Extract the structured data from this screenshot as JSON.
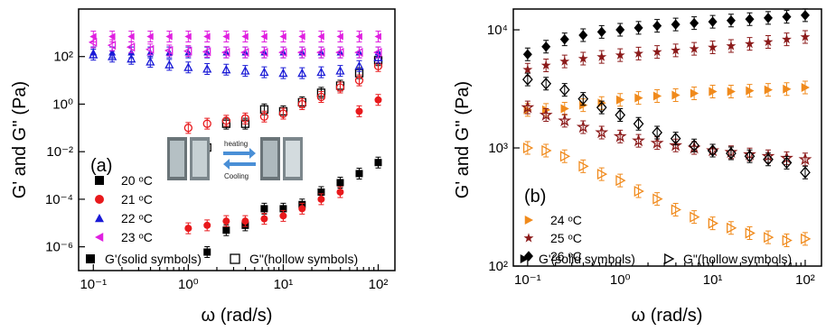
{
  "chart_data": [
    {
      "type": "scatter",
      "panel_label": "(a)",
      "xlabel": "ω  (rad/s)",
      "ylabel": "G' and G'' (Pa)",
      "x_scale": "log",
      "y_scale": "log",
      "xlim": [
        0.07,
        150
      ],
      "ylim": [
        1e-07,
        10000
      ],
      "x_ticks": [
        0.1,
        1,
        10,
        100
      ],
      "x_ticklabels": [
        "10⁻¹",
        "10⁰",
        "10¹",
        "10²"
      ],
      "y_ticks": [
        1e-06,
        0.0001,
        0.01,
        1,
        100
      ],
      "y_ticklabels": [
        "10⁻⁶",
        "10⁻⁴",
        "10⁻²",
        "10⁰",
        "10²"
      ],
      "legend_position": "bottom-left",
      "legend_note_solid": "G'(solid symbols)",
      "legend_note_hollow": "G\"(hollow symbols)",
      "inset": {
        "label_top": "heating",
        "label_bottom": "Cooling"
      },
      "series": [
        {
          "name": "20 ᵒC",
          "color": "#000000",
          "marker": "square",
          "x_Gp": [
            1.58,
            2.51,
            3.98,
            6.31,
            10,
            15.8,
            25.1,
            39.8,
            63.1,
            100
          ],
          "Gp": [
            6e-07,
            5e-06,
            8e-06,
            4e-05,
            4e-05,
            6e-05,
            0.0002,
            0.0005,
            0.0012,
            0.0035
          ],
          "x_Gpp": [
            1.58,
            2.51,
            3.98,
            6.31,
            10,
            15.8,
            25.1,
            39.8,
            63.1,
            100
          ],
          "Gpp": [
            0.015,
            0.15,
            0.15,
            0.6,
            0.5,
            1.2,
            3,
            6,
            20,
            70
          ]
        },
        {
          "name": "21 ᵒC",
          "color": "#e8191c",
          "marker": "circle",
          "x_Gp": [
            1.0,
            1.58,
            2.51,
            3.98,
            6.31,
            10,
            15.8,
            25.1,
            39.8,
            63.1,
            100
          ],
          "Gp": [
            6e-06,
            8e-06,
            1.2e-05,
            1.2e-05,
            1.5e-05,
            2e-05,
            4e-05,
            0.0001,
            0.0002,
            0.5,
            1.5
          ],
          "x_Gpp": [
            1.0,
            1.58,
            2.51,
            3.98,
            6.31,
            10,
            15.8,
            25.1,
            39.8,
            63.1,
            100
          ],
          "Gpp": [
            0.1,
            0.15,
            0.2,
            0.25,
            0.3,
            0.4,
            1,
            2,
            5,
            10,
            40
          ]
        },
        {
          "name": "22 ᵒC",
          "color": "#1a1ad6",
          "marker": "triangle-up",
          "x_Gp": [
            0.1,
            0.158,
            0.251,
            0.398,
            0.631,
            1.0,
            1.58,
            2.51,
            3.98,
            6.31,
            10,
            15.8,
            25.1,
            39.8,
            63.1,
            100
          ],
          "Gp": [
            150,
            150,
            150,
            150,
            150,
            150,
            150,
            150,
            150,
            150,
            150,
            150,
            150,
            150,
            150,
            150
          ],
          "x_Gpp": [
            0.1,
            0.158,
            0.251,
            0.398,
            0.631,
            1.0,
            1.58,
            2.51,
            3.98,
            6.31,
            10,
            15.8,
            25.1,
            39.8,
            63.1,
            100
          ],
          "Gpp": [
            120,
            100,
            80,
            60,
            45,
            35,
            30,
            28,
            25,
            22,
            20,
            20,
            22,
            25,
            40,
            90
          ]
        },
        {
          "name": "23 ᵒC",
          "color": "#e020e0",
          "marker": "triangle-left",
          "x_Gp": [
            0.1,
            0.158,
            0.251,
            0.398,
            0.631,
            1.0,
            1.58,
            2.51,
            3.98,
            6.31,
            10,
            15.8,
            25.1,
            39.8,
            63.1,
            100
          ],
          "Gp": [
            700,
            700,
            700,
            700,
            700,
            700,
            700,
            700,
            700,
            700,
            700,
            700,
            700,
            700,
            700,
            700
          ],
          "x_Gpp": [
            0.1,
            0.158,
            0.251,
            0.398,
            0.631,
            1.0,
            1.58,
            2.51,
            3.98,
            6.31,
            10,
            15.8,
            25.1,
            39.8,
            63.1,
            100
          ],
          "Gpp": [
            400,
            300,
            250,
            200,
            180,
            170,
            160,
            150,
            150,
            150,
            150,
            150,
            150,
            150,
            150,
            150
          ]
        }
      ]
    },
    {
      "type": "scatter",
      "panel_label": "(b)",
      "xlabel": "ω  (rad/s)",
      "ylabel": "G' and G'' (Pa)",
      "x_scale": "log",
      "y_scale": "log",
      "xlim": [
        0.07,
        150
      ],
      "ylim": [
        100,
        15000
      ],
      "x_ticks": [
        0.1,
        1,
        10,
        100
      ],
      "x_ticklabels": [
        "10⁻¹",
        "10⁰",
        "10¹",
        "10²"
      ],
      "y_ticks": [
        100,
        1000,
        10000
      ],
      "y_ticklabels": [
        "10²",
        "10³",
        "10⁴"
      ],
      "legend_position": "bottom-left",
      "legend_note_solid": "G'(solid symbols)",
      "legend_note_hollow": "G\"(hollow symbols)",
      "series": [
        {
          "name": "24 ᵒC",
          "color": "#f08a1c",
          "marker": "triangle-right",
          "x_Gp": [
            0.1,
            0.158,
            0.251,
            0.398,
            0.631,
            1.0,
            1.58,
            2.51,
            3.98,
            6.31,
            10,
            15.8,
            25.1,
            39.8,
            63.1,
            100
          ],
          "Gp": [
            2100,
            2100,
            2150,
            2300,
            2400,
            2550,
            2650,
            2750,
            2800,
            2900,
            3000,
            3000,
            3050,
            3100,
            3150,
            3250
          ],
          "x_Gpp": [
            0.1,
            0.158,
            0.251,
            0.398,
            0.631,
            1.0,
            1.58,
            2.51,
            3.98,
            6.31,
            10,
            15.8,
            25.1,
            39.8,
            63.1,
            100
          ],
          "Gpp": [
            1000,
            950,
            850,
            700,
            600,
            530,
            430,
            370,
            300,
            260,
            230,
            210,
            190,
            175,
            165,
            170
          ]
        },
        {
          "name": "25 ᵒC",
          "color": "#8b1a1a",
          "marker": "star",
          "x_Gp": [
            0.1,
            0.158,
            0.251,
            0.398,
            0.631,
            1.0,
            1.58,
            2.51,
            3.98,
            6.31,
            10,
            15.8,
            25.1,
            39.8,
            63.1,
            100
          ],
          "Gp": [
            4600,
            5000,
            5400,
            5700,
            5900,
            6100,
            6300,
            6500,
            6700,
            6900,
            7100,
            7300,
            7600,
            7900,
            8300,
            8700
          ],
          "x_Gpp": [
            0.1,
            0.158,
            0.251,
            0.398,
            0.631,
            1.0,
            1.58,
            2.51,
            3.98,
            6.31,
            10,
            15.8,
            25.1,
            39.8,
            63.1,
            100
          ],
          "Gpp": [
            2200,
            1900,
            1700,
            1500,
            1350,
            1250,
            1150,
            1100,
            1050,
            1000,
            950,
            920,
            880,
            850,
            820,
            800
          ]
        },
        {
          "name": "26 ᵒC",
          "color": "#000000",
          "marker": "diamond",
          "x_Gp": [
            0.1,
            0.158,
            0.251,
            0.398,
            0.631,
            1.0,
            1.58,
            2.51,
            3.98,
            6.31,
            10,
            15.8,
            25.1,
            39.8,
            63.1,
            100
          ],
          "Gp": [
            6200,
            7200,
            8300,
            9000,
            9600,
            10000,
            10400,
            10800,
            11100,
            11400,
            11700,
            12000,
            12300,
            12600,
            12900,
            13300
          ],
          "x_Gpp": [
            0.1,
            0.158,
            0.251,
            0.398,
            0.631,
            1.0,
            1.58,
            2.51,
            3.98,
            6.31,
            10,
            15.8,
            25.1,
            39.8,
            63.1,
            100
          ],
          "Gpp": [
            3800,
            3500,
            3100,
            2600,
            2200,
            1900,
            1600,
            1350,
            1200,
            1050,
            950,
            900,
            850,
            800,
            750,
            620
          ]
        }
      ]
    }
  ]
}
